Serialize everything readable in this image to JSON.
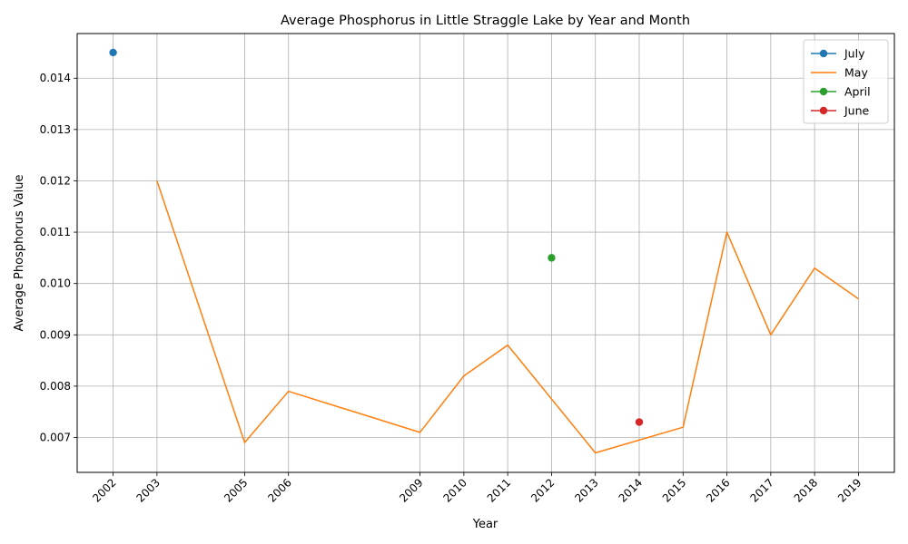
{
  "chart_data": {
    "type": "line",
    "title": "Average Phosphorus in Little Straggle Lake by Year and Month",
    "xlabel": "Year",
    "ylabel": "Average Phosphorus Value",
    "x_ticks": [
      2002,
      2003,
      2005,
      2006,
      2009,
      2010,
      2011,
      2012,
      2013,
      2014,
      2015,
      2016,
      2017,
      2018,
      2019
    ],
    "y_ticks": [
      0.007,
      0.008,
      0.009,
      0.01,
      0.011,
      0.012,
      0.013,
      0.014
    ],
    "y_tick_labels": [
      "0.007",
      "0.008",
      "0.009",
      "0.010",
      "0.011",
      "0.012",
      "0.013",
      "0.014"
    ],
    "xlim": [
      2001.18,
      2019.82
    ],
    "ylim": [
      0.00632,
      0.01487
    ],
    "grid": true,
    "legend_position": "top-right",
    "series": [
      {
        "name": "July",
        "color": "#1f77b4",
        "marker": true,
        "points": [
          [
            2002,
            0.0145
          ]
        ]
      },
      {
        "name": "May",
        "color": "#ff7f0e",
        "marker": false,
        "points": [
          [
            2003,
            0.012
          ],
          [
            2005,
            0.0069
          ],
          [
            2006,
            0.0079
          ],
          [
            2009,
            0.0071
          ],
          [
            2010,
            0.0082
          ],
          [
            2011,
            0.0088
          ],
          [
            2013,
            0.0067
          ],
          [
            2015,
            0.0072
          ],
          [
            2016,
            0.011
          ],
          [
            2017,
            0.009
          ],
          [
            2018,
            0.0103
          ],
          [
            2019,
            0.0097
          ]
        ]
      },
      {
        "name": "April",
        "color": "#2ca02c",
        "marker": true,
        "points": [
          [
            2012,
            0.0105
          ]
        ]
      },
      {
        "name": "June",
        "color": "#d62728",
        "marker": true,
        "points": [
          [
            2014,
            0.0073
          ]
        ]
      }
    ]
  }
}
